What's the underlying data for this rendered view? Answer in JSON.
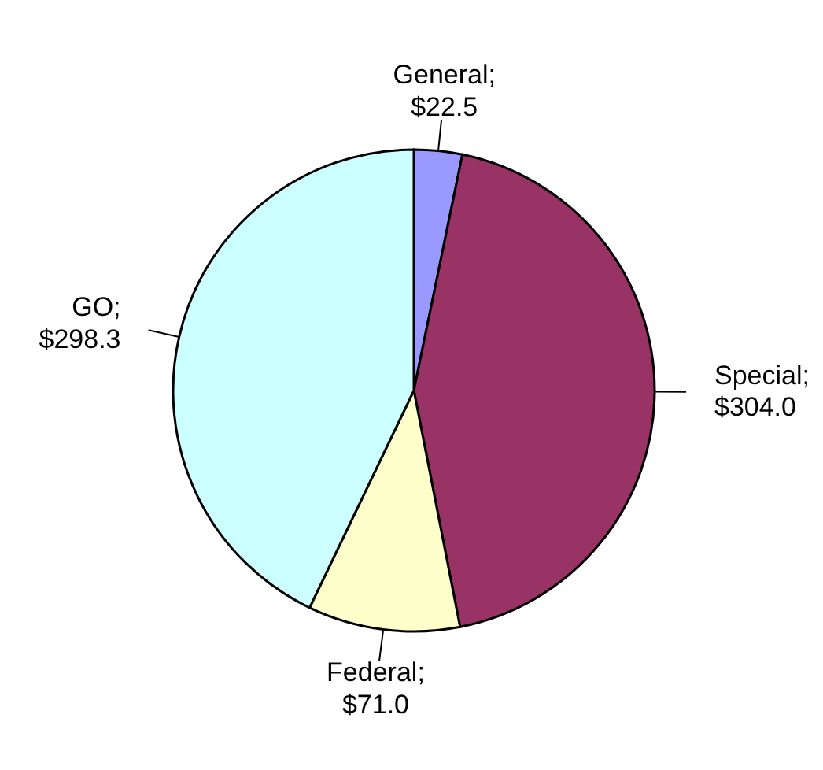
{
  "chart_data": {
    "type": "pie",
    "categories": [
      "General",
      "Special",
      "Federal",
      "GO"
    ],
    "values": [
      22.5,
      304.0,
      71.0,
      298.3
    ],
    "value_labels": [
      "; $22.5",
      "; $304.0",
      "; $71.0",
      "; $298.3"
    ],
    "colors": [
      "#9999ff",
      "#993366",
      "#ffffcc",
      "#ccffff"
    ],
    "legend": false
  }
}
